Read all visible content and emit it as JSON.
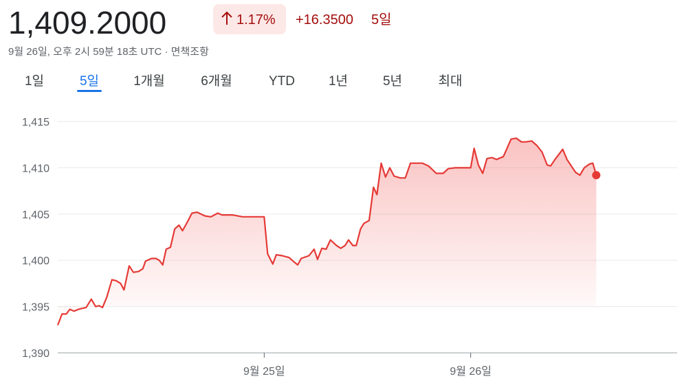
{
  "header": {
    "price": "1,409.2000",
    "change_percent": "1.17%",
    "change": "+16.3500",
    "period": "5일",
    "timestamp": "9월 26일, 오후 2시 59분 18초 UTC · 면책조항"
  },
  "tabs": {
    "items": [
      "1일",
      "5일",
      "1개월",
      "6개월",
      "YTD",
      "1년",
      "5년",
      "최대"
    ],
    "active": 1
  },
  "chart_data": {
    "type": "line",
    "color": "#e53935",
    "grid": true,
    "xlim": [
      0,
      72
    ],
    "xticks": [
      {
        "value": 24,
        "label": "9월 25일"
      },
      {
        "value": 48,
        "label": "9월 26일"
      }
    ],
    "ylim": [
      1390,
      1415
    ],
    "yticks": [
      {
        "value": 1390,
        "label": "1,390"
      },
      {
        "value": 1395,
        "label": "1,395"
      },
      {
        "value": 1400,
        "label": "1,400"
      },
      {
        "value": 1405,
        "label": "1,405"
      },
      {
        "value": 1410,
        "label": "1,410"
      },
      {
        "value": 1415,
        "label": "1,415"
      }
    ],
    "x": [
      0,
      0.5,
      1.0,
      1.4,
      1.9,
      2.4,
      3.3,
      3.9,
      4.4,
      4.8,
      5.2,
      5.7,
      6.3,
      6.8,
      7.3,
      7.7,
      8.3,
      8.8,
      9.4,
      9.9,
      10.2,
      10.9,
      11.4,
      11.8,
      12.2,
      12.6,
      13.1,
      13.6,
      14.1,
      14.5,
      15.1,
      15.6,
      16.2,
      17.1,
      17.8,
      18.6,
      19.1,
      20.3,
      21.5,
      24.0,
      24.4,
      25.0,
      25.4,
      26.1,
      26.9,
      27.5,
      27.9,
      28.3,
      29.2,
      29.8,
      30.2,
      30.7,
      31.2,
      31.7,
      32.4,
      32.9,
      33.4,
      33.8,
      34.3,
      34.7,
      35.2,
      35.6,
      36.2,
      36.7,
      37.1,
      37.6,
      38.1,
      38.6,
      39.1,
      39.8,
      40.4,
      41.0,
      42.4,
      43.1,
      44.0,
      44.8,
      45.4,
      46.2,
      48.0,
      48.4,
      48.9,
      49.4,
      49.9,
      50.5,
      51.0,
      51.8,
      52.7,
      53.3,
      53.9,
      54.4,
      55.1,
      55.7,
      56.3,
      56.9,
      57.3,
      57.8,
      58.7,
      59.2,
      60.2,
      60.7,
      61.2,
      61.8,
      62.2,
      62.6
    ],
    "values": [
      1393.0,
      1394.2,
      1394.2,
      1394.7,
      1394.5,
      1394.7,
      1394.9,
      1395.8,
      1395.0,
      1395.1,
      1394.9,
      1396.0,
      1397.9,
      1397.8,
      1397.5,
      1396.8,
      1399.4,
      1398.7,
      1398.8,
      1399.1,
      1399.9,
      1400.2,
      1400.2,
      1400.0,
      1399.5,
      1401.2,
      1401.4,
      1403.4,
      1403.8,
      1403.2,
      1404.2,
      1405.1,
      1405.2,
      1404.8,
      1404.7,
      1405.1,
      1404.9,
      1404.9,
      1404.7,
      1404.7,
      1400.7,
      1399.6,
      1400.6,
      1400.5,
      1400.3,
      1399.8,
      1399.5,
      1400.2,
      1400.5,
      1401.2,
      1400.1,
      1401.3,
      1401.2,
      1402.2,
      1401.6,
      1401.3,
      1401.6,
      1402.2,
      1401.6,
      1401.6,
      1403.4,
      1404.0,
      1404.3,
      1407.9,
      1407.1,
      1410.5,
      1409.0,
      1410.0,
      1409.1,
      1408.9,
      1408.9,
      1410.5,
      1410.5,
      1410.2,
      1409.4,
      1409.4,
      1409.9,
      1410.0,
      1410.0,
      1412.1,
      1410.3,
      1409.4,
      1411.0,
      1411.1,
      1410.9,
      1411.2,
      1413.1,
      1413.2,
      1412.8,
      1412.8,
      1412.9,
      1412.4,
      1411.7,
      1410.3,
      1410.2,
      1410.9,
      1412.0,
      1410.9,
      1409.5,
      1409.2,
      1410.0,
      1410.4,
      1410.5,
      1409.2
    ]
  }
}
